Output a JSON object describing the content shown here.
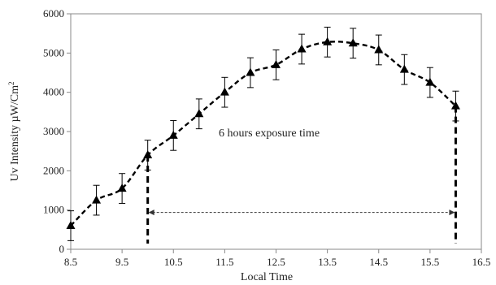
{
  "chart_data": {
    "type": "line",
    "xlabel": "Local Time",
    "ylabel_main": "Uv Intensity  µW/Cm",
    "ylabel_sup": "2",
    "xlim": [
      8.5,
      16.5
    ],
    "ylim": [
      0,
      6000
    ],
    "x_ticks": [
      "8.5",
      "9.5",
      "10.5",
      "11.5",
      "12.5",
      "13.5",
      "14.5",
      "15.5",
      "16.5"
    ],
    "y_ticks": [
      "0",
      "1000",
      "2000",
      "3000",
      "4000",
      "5000",
      "6000"
    ],
    "grid": false,
    "legend": "none",
    "series": [
      {
        "style": "dashed-black-with-triangle-markers",
        "x": [
          8.5,
          9.0,
          9.5,
          10.0,
          10.5,
          11.0,
          11.5,
          12.0,
          12.5,
          13.0,
          13.5,
          14.0,
          14.5,
          15.0,
          15.5,
          16.0
        ],
        "y": [
          600,
          1250,
          1550,
          2400,
          2900,
          3450,
          4000,
          4500,
          4700,
          5100,
          5280,
          5250,
          5080,
          4580,
          4250,
          3650
        ],
        "error": [
          380,
          380,
          380,
          380,
          380,
          380,
          380,
          380,
          380,
          380,
          380,
          380,
          380,
          380,
          380,
          380
        ]
      }
    ],
    "annotations": {
      "exposure_text": "6 hours exposure time",
      "exposure_start": 10.0,
      "exposure_end": 16.0,
      "arrow_y": 1250
    }
  }
}
